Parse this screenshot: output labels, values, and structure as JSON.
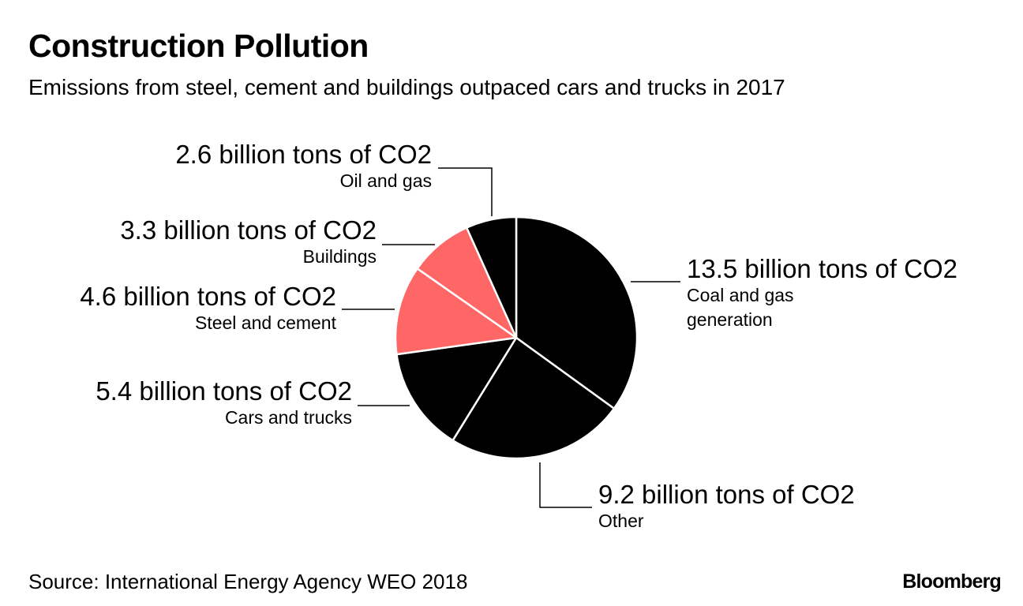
{
  "chart_data": {
    "type": "pie",
    "title": "Construction Pollution",
    "subtitle": "Emissions from steel, cement and buildings outpaced cars and trucks in 2017",
    "unit": "billion tons of CO2",
    "slices": [
      {
        "key": "coal",
        "name_lines": [
          "Coal and gas",
          "generation"
        ],
        "value": 13.5,
        "value_text": "13.5 billion tons of CO2",
        "color": "#000000"
      },
      {
        "key": "other",
        "name_lines": [
          "Other"
        ],
        "value": 9.2,
        "value_text": "9.2 billion tons of CO2",
        "color": "#000000"
      },
      {
        "key": "cars",
        "name_lines": [
          "Cars and trucks"
        ],
        "value": 5.4,
        "value_text": "5.4 billion tons of CO2",
        "color": "#000000"
      },
      {
        "key": "steel",
        "name_lines": [
          "Steel and cement"
        ],
        "value": 4.6,
        "value_text": "4.6 billion tons of CO2",
        "color": "#ff6666"
      },
      {
        "key": "buildings",
        "name_lines": [
          "Buildings"
        ],
        "value": 3.3,
        "value_text": "3.3 billion tons of CO2",
        "color": "#ff6666"
      },
      {
        "key": "oil",
        "name_lines": [
          "Oil and gas"
        ],
        "value": 2.6,
        "value_text": "2.6 billion tons of CO2",
        "color": "#000000"
      }
    ],
    "source": "Source: International Energy Agency WEO 2018",
    "brand": "Bloomberg"
  }
}
